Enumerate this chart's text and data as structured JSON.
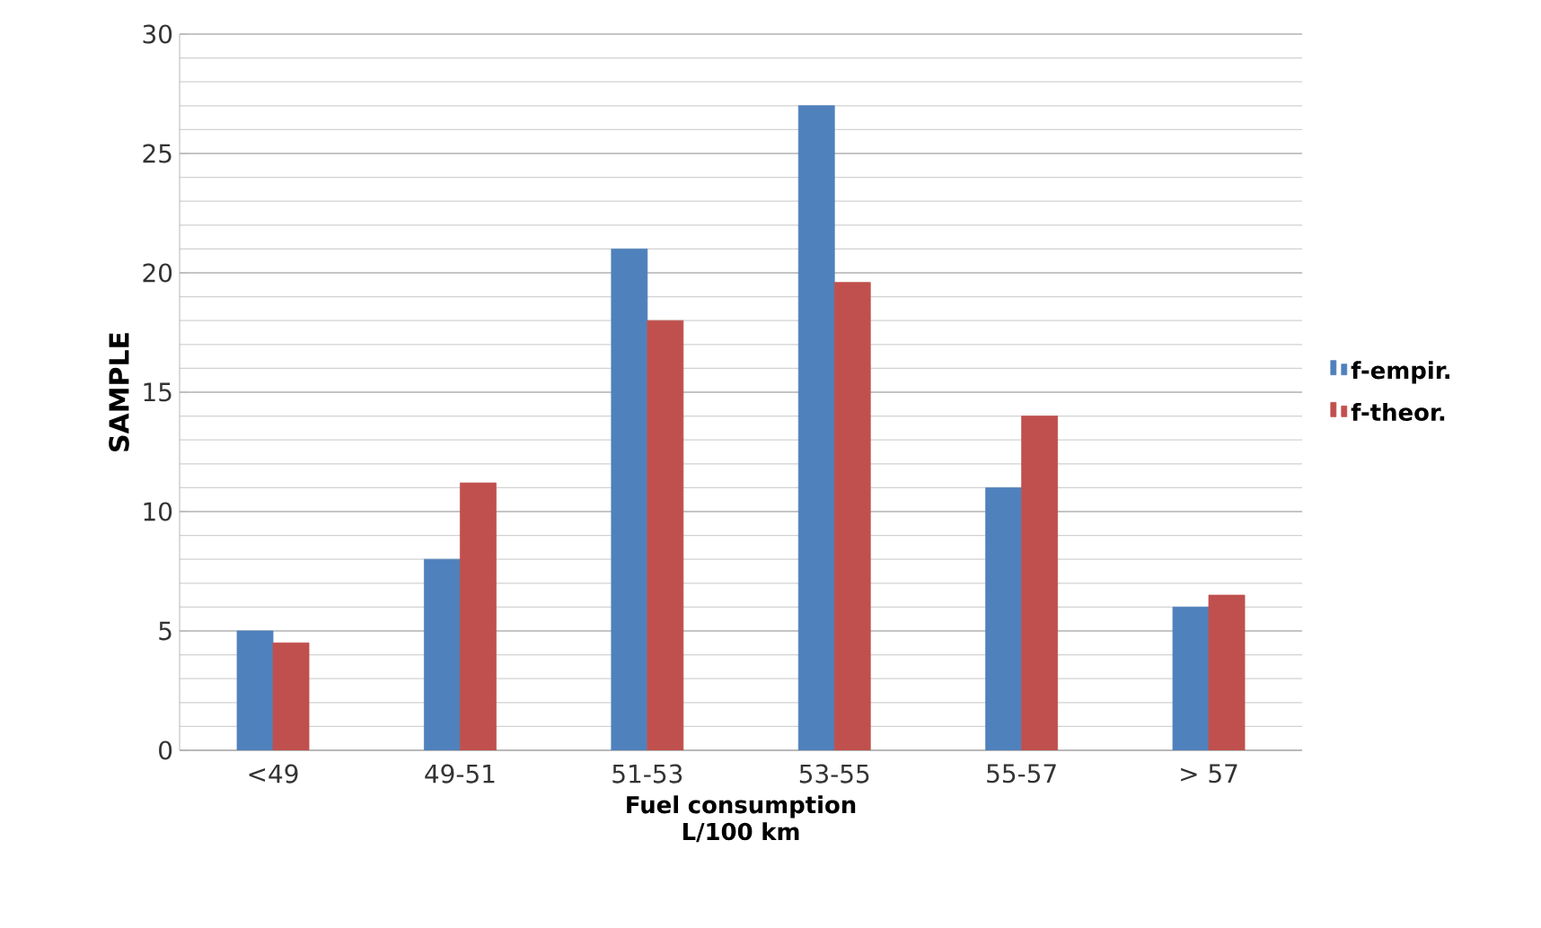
{
  "chart_data": {
    "type": "bar",
    "xlabel": "Fuel consumption L/100 km",
    "ylabel": "SAMPLE",
    "categories": [
      "<49",
      "49-51",
      "51-53",
      "53-55",
      "55-57",
      "> 57"
    ],
    "series": [
      {
        "name": "f-empir.",
        "color": "#4f81bd",
        "values": [
          5,
          8,
          21,
          27,
          11,
          6
        ]
      },
      {
        "name": "f-theor.",
        "color": "#c0504d",
        "values": [
          4.5,
          11.2,
          18,
          19.6,
          14,
          6.5
        ]
      }
    ],
    "ylim": [
      0,
      30
    ],
    "yticks": [
      0,
      5,
      10,
      15,
      20,
      25,
      30
    ],
    "grid": "y",
    "legend": "right"
  }
}
